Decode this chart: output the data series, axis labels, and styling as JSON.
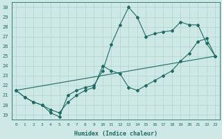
{
  "xlabel": "Humidex (Indice chaleur)",
  "bg_color": "#cde8e5",
  "line_color": "#1e6b65",
  "grid_color": "#afd4cf",
  "xlim": [
    -0.5,
    23.5
  ],
  "ylim": [
    18.5,
    30.5
  ],
  "yticks": [
    19,
    20,
    21,
    22,
    23,
    24,
    25,
    26,
    27,
    28,
    29,
    30
  ],
  "xticks": [
    0,
    1,
    2,
    3,
    4,
    5,
    6,
    7,
    8,
    9,
    10,
    11,
    12,
    13,
    14,
    15,
    16,
    17,
    18,
    19,
    20,
    21,
    22,
    23
  ],
  "line1_x": [
    0,
    1,
    2,
    3,
    4,
    5,
    6,
    7,
    8,
    9,
    10,
    11,
    12,
    13,
    14,
    15,
    16,
    17,
    18,
    19,
    20,
    21,
    22,
    23
  ],
  "line1_y": [
    21.5,
    20.8,
    20.3,
    20.0,
    19.2,
    18.8,
    21.0,
    21.5,
    21.8,
    22.0,
    23.5,
    26.2,
    28.2,
    30.0,
    29.0,
    27.0,
    27.3,
    27.5,
    27.6,
    28.5,
    28.2,
    28.2,
    26.3,
    25.0
  ],
  "line2_x": [
    0,
    1,
    2,
    3,
    4,
    5,
    6,
    7,
    8,
    9,
    10,
    11,
    12,
    13,
    14,
    15,
    16,
    17,
    18,
    19,
    20,
    21,
    22,
    23
  ],
  "line2_y": [
    21.5,
    20.8,
    20.3,
    20.0,
    19.5,
    19.2,
    20.3,
    21.0,
    21.5,
    21.8,
    24.0,
    23.5,
    23.2,
    21.8,
    21.5,
    22.0,
    22.5,
    23.0,
    23.5,
    24.5,
    25.3,
    26.5,
    26.8,
    25.0
  ],
  "line3_x": [
    0,
    23
  ],
  "line3_y": [
    21.5,
    25.0
  ],
  "marker": "D",
  "markersize": 2.0
}
